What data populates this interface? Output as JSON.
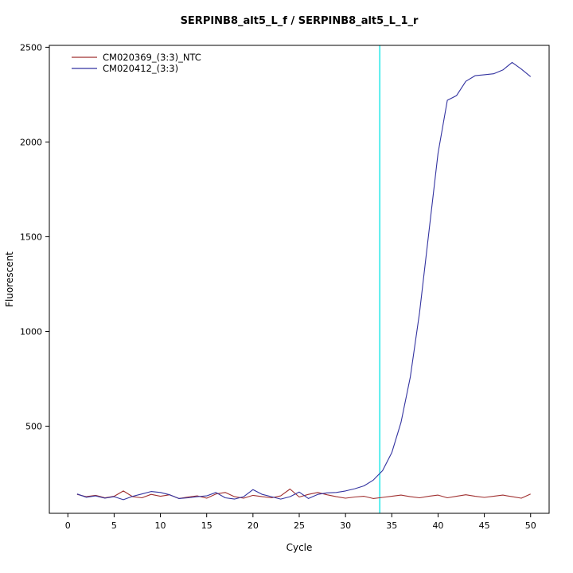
{
  "chart_data": {
    "type": "line",
    "title": "SERPINB8_alt5_L_f / SERPINB8_alt5_L_1_r",
    "xlabel": "Cycle",
    "ylabel": "Fluorescent",
    "xlim": [
      -2,
      52
    ],
    "ylim": [
      40,
      2510
    ],
    "x_ticks": [
      0,
      5,
      10,
      15,
      20,
      25,
      30,
      35,
      40,
      45,
      50
    ],
    "y_ticks": [
      500,
      1000,
      1500,
      2000,
      2500
    ],
    "grid": false,
    "legend_position": "top-left",
    "threshold_line": {
      "x": 33.7,
      "color": "#00E5E5"
    },
    "x": [
      1,
      2,
      3,
      4,
      5,
      6,
      7,
      8,
      9,
      10,
      11,
      12,
      13,
      14,
      15,
      16,
      17,
      18,
      19,
      20,
      21,
      22,
      23,
      24,
      25,
      26,
      27,
      28,
      29,
      30,
      31,
      32,
      33,
      34,
      35,
      36,
      37,
      38,
      39,
      40,
      41,
      42,
      43,
      44,
      45,
      46,
      47,
      48,
      49,
      50
    ],
    "series": [
      {
        "name": "CM020369_(3:3)_NTC",
        "color": "#A03030",
        "values": [
          140,
          128,
          135,
          122,
          130,
          158,
          128,
          122,
          140,
          130,
          138,
          118,
          126,
          132,
          120,
          142,
          150,
          128,
          120,
          135,
          128,
          122,
          132,
          168,
          126,
          140,
          150,
          138,
          128,
          120,
          126,
          130,
          118,
          124,
          130,
          136,
          128,
          122,
          130,
          136,
          122,
          130,
          138,
          130,
          124,
          130,
          136,
          128,
          120,
          142
        ]
      },
      {
        "name": "CM020412_(3:3)",
        "color": "#3333A0",
        "values": [
          142,
          125,
          132,
          120,
          128,
          112,
          130,
          142,
          155,
          150,
          138,
          118,
          122,
          128,
          132,
          150,
          122,
          115,
          128,
          165,
          140,
          128,
          115,
          128,
          152,
          118,
          140,
          148,
          150,
          158,
          170,
          185,
          215,
          265,
          360,
          520,
          760,
          1100,
          1520,
          1940,
          2220,
          2245,
          2320,
          2350,
          2355,
          2360,
          2380,
          2420,
          2385,
          2345
        ]
      }
    ]
  }
}
